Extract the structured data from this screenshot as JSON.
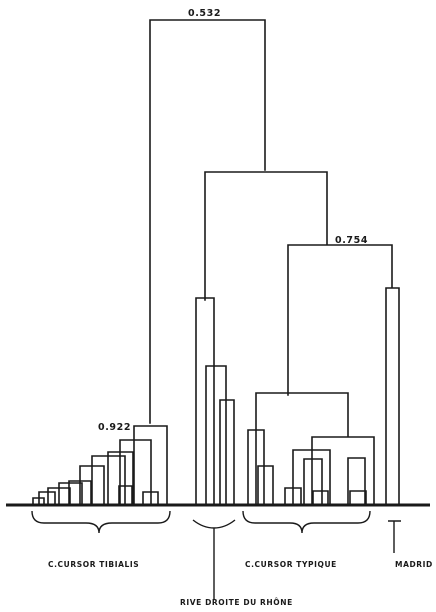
{
  "node_labels": {
    "root": "0.532",
    "typique_cluster": "0.754",
    "tibialis_cluster": "0.922"
  },
  "group_labels": {
    "tibialis": "C.CURSOR TIBIALIS",
    "rhone": "RIVE DROITE DU RHÔNE",
    "typique": "C.CURSOR TYPIQUE",
    "madrid": "MADRID"
  }
}
